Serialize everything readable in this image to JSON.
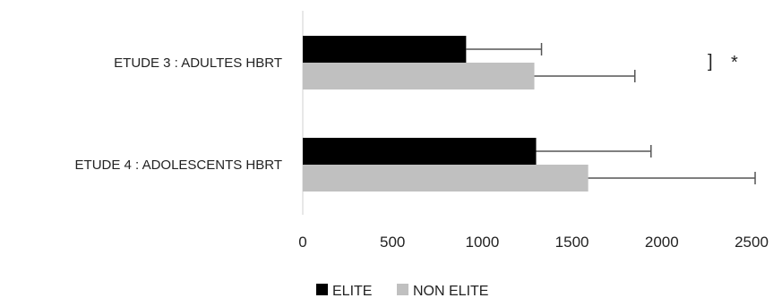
{
  "chart_data": {
    "type": "bar",
    "orientation": "horizontal",
    "title": "",
    "xlabel": "",
    "ylabel": "",
    "xlim": [
      0,
      2500
    ],
    "ticks": [
      0,
      500,
      1000,
      1500,
      2000,
      2500
    ],
    "tick_labels": [
      "0",
      "500",
      "1000",
      "1500",
      "2000",
      "2500"
    ],
    "grid": false,
    "legend_position": "bottom",
    "categories": [
      "ETUDE 3 : ADULTES HBRT",
      "ETUDE 4 :  ADOLESCENTS HBRT"
    ],
    "series": [
      {
        "name": "ELITE",
        "color": "#000000",
        "values": [
          910,
          1300
        ],
        "errors": [
          420,
          640
        ]
      },
      {
        "name": "NON ELITE",
        "color": "#c0c0c0",
        "values": [
          1290,
          1590
        ],
        "errors": [
          560,
          930
        ]
      }
    ],
    "annotation": {
      "category_index": 0,
      "symbol": "]",
      "text": "*"
    }
  }
}
